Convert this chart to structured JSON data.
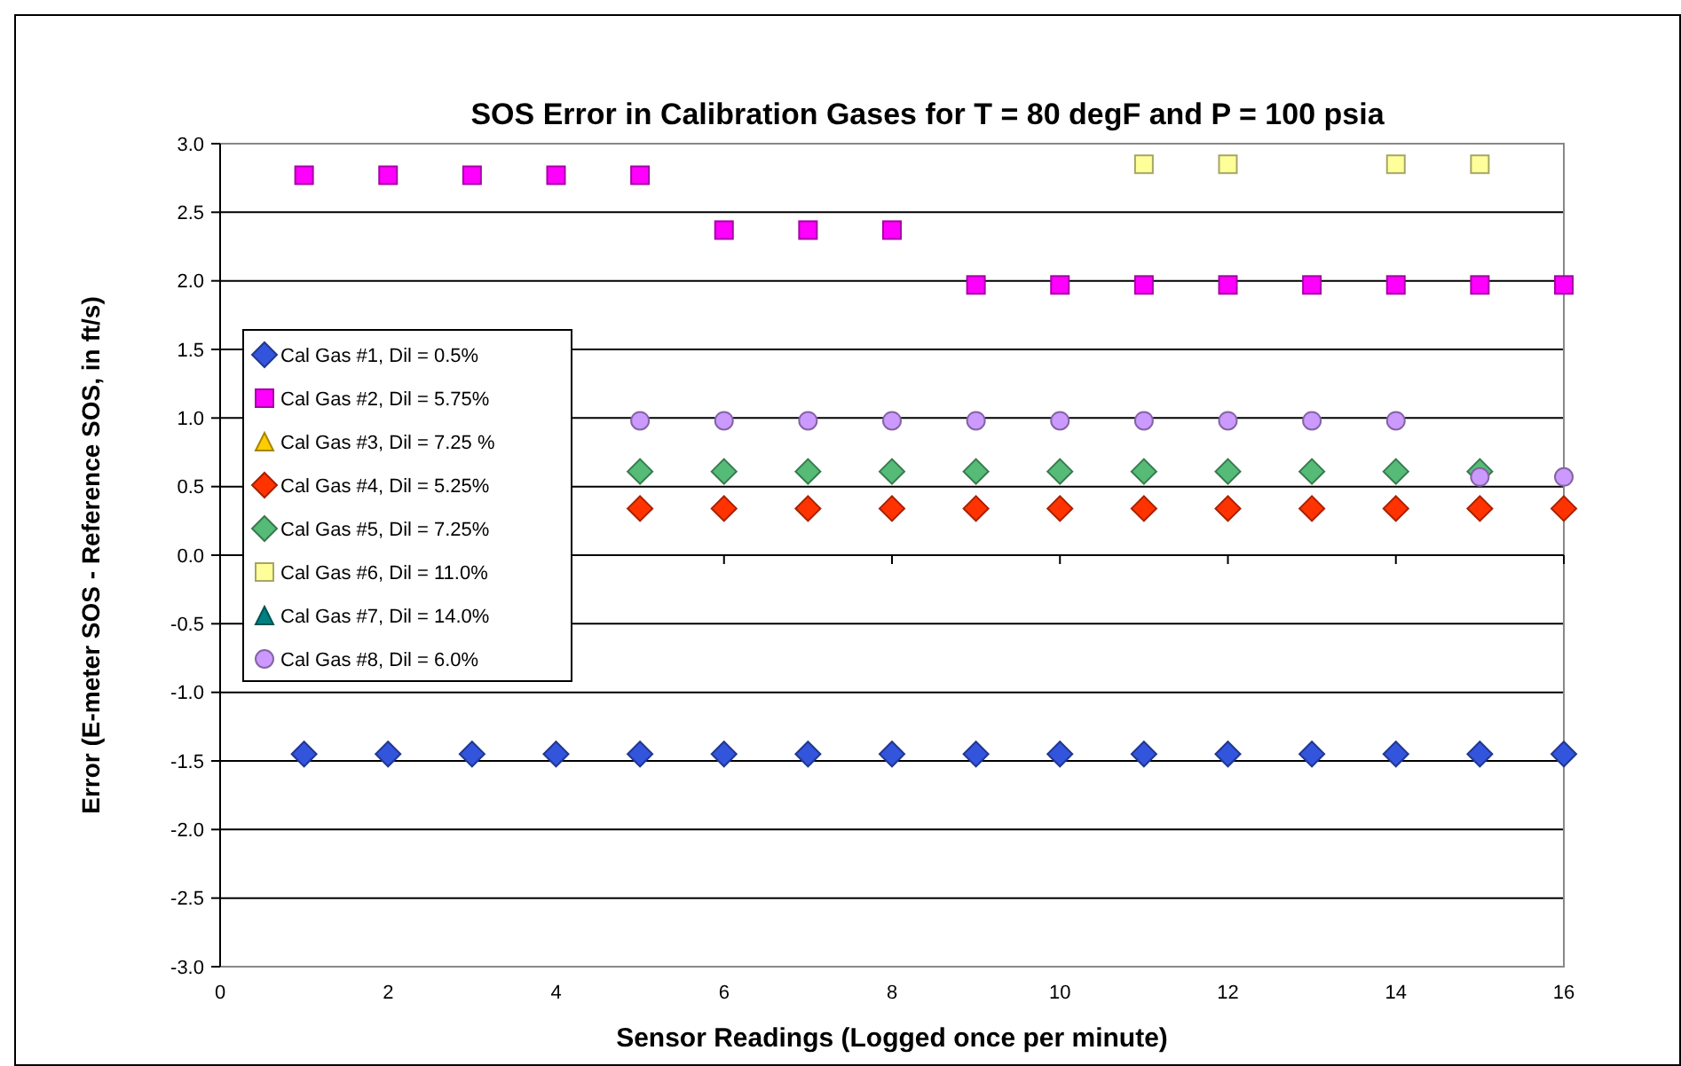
{
  "chart_data": {
    "type": "scatter",
    "title": "SOS Error in Calibration Gases for T = 80 degF and P = 100 psia",
    "xlabel": "Sensor Readings (Logged once per minute)",
    "ylabel": "Error (E-meter SOS - Reference SOS, in ft/s)",
    "x": [
      1,
      2,
      3,
      4,
      5,
      6,
      7,
      8,
      9,
      10,
      11,
      12,
      13,
      14,
      15,
      16
    ],
    "series": [
      {
        "name": "Cal Gas #1, Dil = 0.5%",
        "color": "#3355dd",
        "marker": "diamond",
        "values": [
          -1.45,
          -1.45,
          -1.45,
          -1.45,
          -1.45,
          -1.45,
          -1.45,
          -1.45,
          -1.45,
          -1.45,
          -1.45,
          -1.45,
          -1.45,
          -1.45,
          -1.45,
          -1.45
        ]
      },
      {
        "name": "Cal Gas #2, Dil = 5.75%",
        "color": "#ff00ff",
        "marker": "square",
        "values": [
          2.77,
          2.77,
          2.77,
          2.77,
          2.77,
          2.37,
          2.37,
          2.37,
          1.97,
          1.97,
          1.97,
          1.97,
          1.97,
          1.97,
          1.97,
          1.97
        ]
      },
      {
        "name": "Cal Gas #3, Dil = 7.25 %",
        "color": "#ffcc00",
        "marker": "triangle",
        "values": [
          null,
          null,
          null,
          null,
          null,
          null,
          null,
          null,
          null,
          null,
          null,
          null,
          null,
          null,
          null,
          null
        ]
      },
      {
        "name": "Cal Gas #4, Dil = 5.25%",
        "color": "#ff3300",
        "marker": "diamond",
        "values": [
          null,
          null,
          null,
          null,
          0.34,
          0.34,
          0.34,
          0.34,
          0.34,
          0.34,
          0.34,
          0.34,
          0.34,
          0.34,
          0.34,
          0.34
        ]
      },
      {
        "name": "Cal Gas #5, Dil = 7.25%",
        "color": "#55bb77",
        "marker": "diamond",
        "values": [
          null,
          null,
          null,
          null,
          0.61,
          0.61,
          0.61,
          0.61,
          0.61,
          0.61,
          0.61,
          0.61,
          0.61,
          0.61,
          0.61,
          null
        ]
      },
      {
        "name": "Cal Gas #6, Dil = 11.0%",
        "color": "#ffff99",
        "marker": "square",
        "values": [
          null,
          null,
          null,
          null,
          null,
          null,
          null,
          null,
          null,
          null,
          2.85,
          2.85,
          null,
          2.85,
          2.85,
          null
        ]
      },
      {
        "name": "Cal Gas #7, Dil = 14.0%",
        "color": "#008080",
        "marker": "triangle",
        "values": [
          null,
          null,
          null,
          null,
          null,
          null,
          null,
          null,
          null,
          null,
          null,
          null,
          null,
          null,
          null,
          null
        ]
      },
      {
        "name": "Cal Gas #8, Dil = 6.0%",
        "color": "#cc99ff",
        "marker": "circle",
        "values": [
          null,
          null,
          null,
          null,
          0.98,
          0.98,
          0.98,
          0.98,
          0.98,
          0.98,
          0.98,
          0.98,
          0.98,
          0.98,
          0.57,
          0.57
        ]
      }
    ],
    "xlim": [
      0,
      16
    ],
    "xticks": [
      0,
      2,
      4,
      6,
      8,
      10,
      12,
      14,
      16
    ],
    "ylim": [
      -3,
      3
    ],
    "yticks": [
      {
        "value": -3,
        "label": "-3.0"
      },
      {
        "value": -2.5,
        "label": "-2.5"
      },
      {
        "value": -2,
        "label": "-2.0"
      },
      {
        "value": -1.5,
        "label": "-1.5"
      },
      {
        "value": -1,
        "label": "-1.0"
      },
      {
        "value": -0.5,
        "label": "-0.5"
      },
      {
        "value": 0,
        "label": "0.0"
      },
      {
        "value": 0.5,
        "label": "0.5"
      },
      {
        "value": 1,
        "label": "1.0"
      },
      {
        "value": 1.5,
        "label": "1.5"
      },
      {
        "value": 2,
        "label": "2.0"
      },
      {
        "value": 2.5,
        "label": "2.5"
      },
      {
        "value": 3,
        "label": "3.0"
      }
    ],
    "grid": "y",
    "legend": "left"
  }
}
